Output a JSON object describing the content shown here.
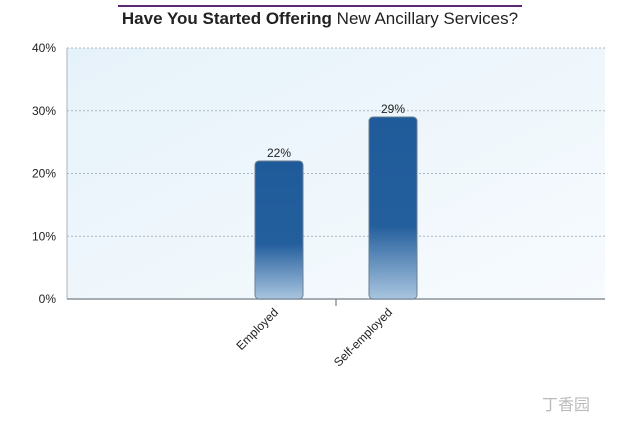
{
  "chart_data": {
    "type": "bar",
    "title": {
      "bold": "Have You Started Offering",
      "regular": "New Ancillary Services?"
    },
    "categories": [
      "Employed",
      "Self-employed"
    ],
    "values": [
      22,
      29
    ],
    "value_labels": [
      "22%",
      "29%"
    ],
    "color": "#1f5a9a",
    "ylim": [
      0,
      40
    ],
    "yticks": [
      {
        "value": 0,
        "label": "0%"
      },
      {
        "value": 10,
        "label": "10%"
      },
      {
        "value": 20,
        "label": "20%"
      },
      {
        "value": 30,
        "label": "30%"
      },
      {
        "value": 40,
        "label": "40%"
      }
    ],
    "grid": true,
    "watermark": "丁香园"
  }
}
